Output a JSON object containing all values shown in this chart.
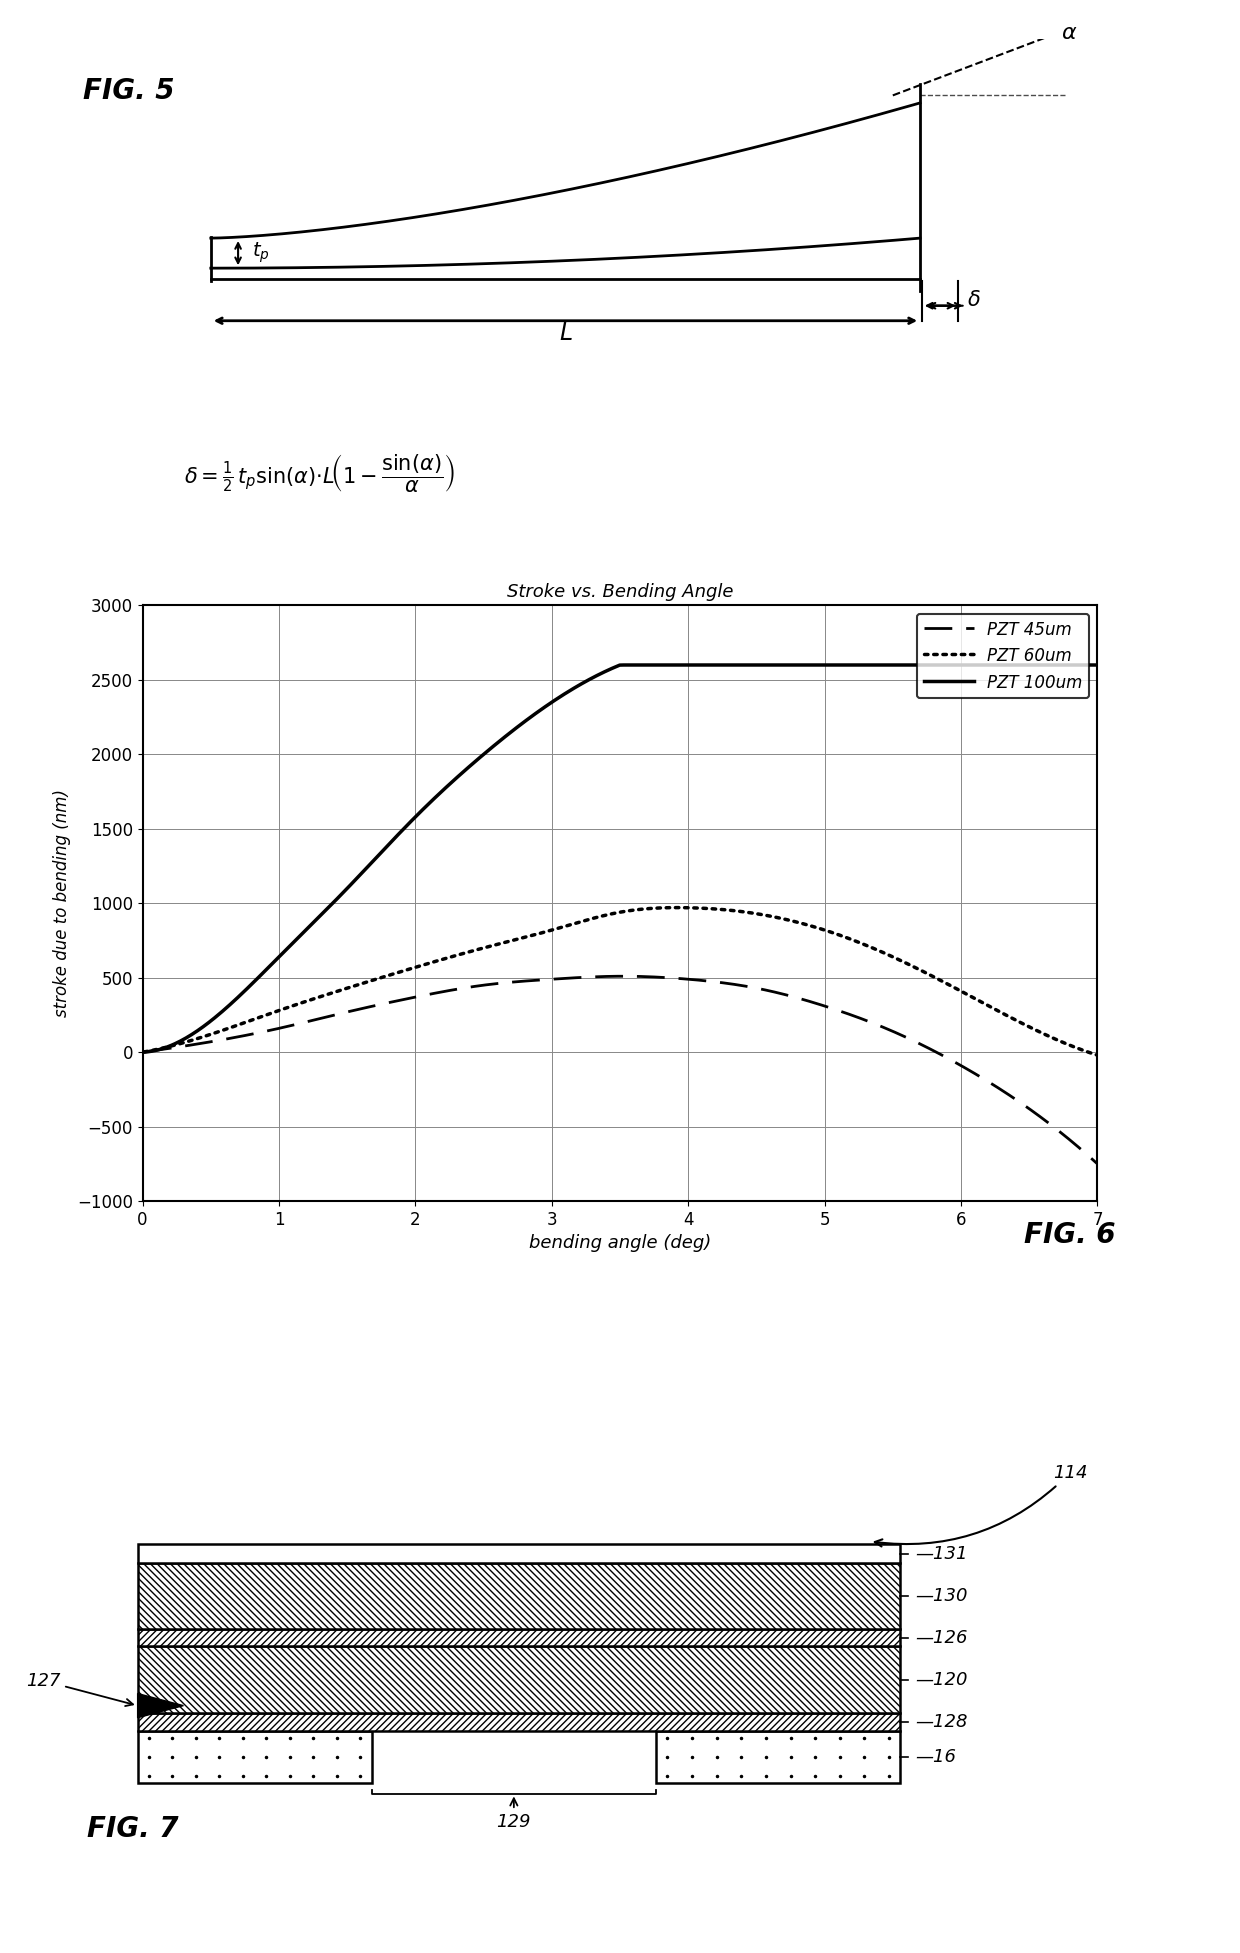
{
  "fig5_label": "FIG. 5",
  "fig6_label": "FIG. 6",
  "fig7_label": "FIG. 7",
  "chart_title": "Stroke vs. Bending Angle",
  "xlabel": "bending angle (deg)",
  "ylabel": "stroke due to bending (nm)",
  "xlim": [
    0,
    7
  ],
  "ylim": [
    -1000,
    3000
  ],
  "xticks": [
    0,
    1,
    2,
    3,
    4,
    5,
    6,
    7
  ],
  "yticks": [
    -1000,
    -500,
    0,
    500,
    1000,
    1500,
    2000,
    2500,
    3000
  ],
  "legend_entries": [
    "PZT 45um",
    "PZT 60um",
    "PZT 100um"
  ],
  "scale45": 11000,
  "scale60": 21000,
  "scale100": 60000,
  "background_color": "#ffffff"
}
